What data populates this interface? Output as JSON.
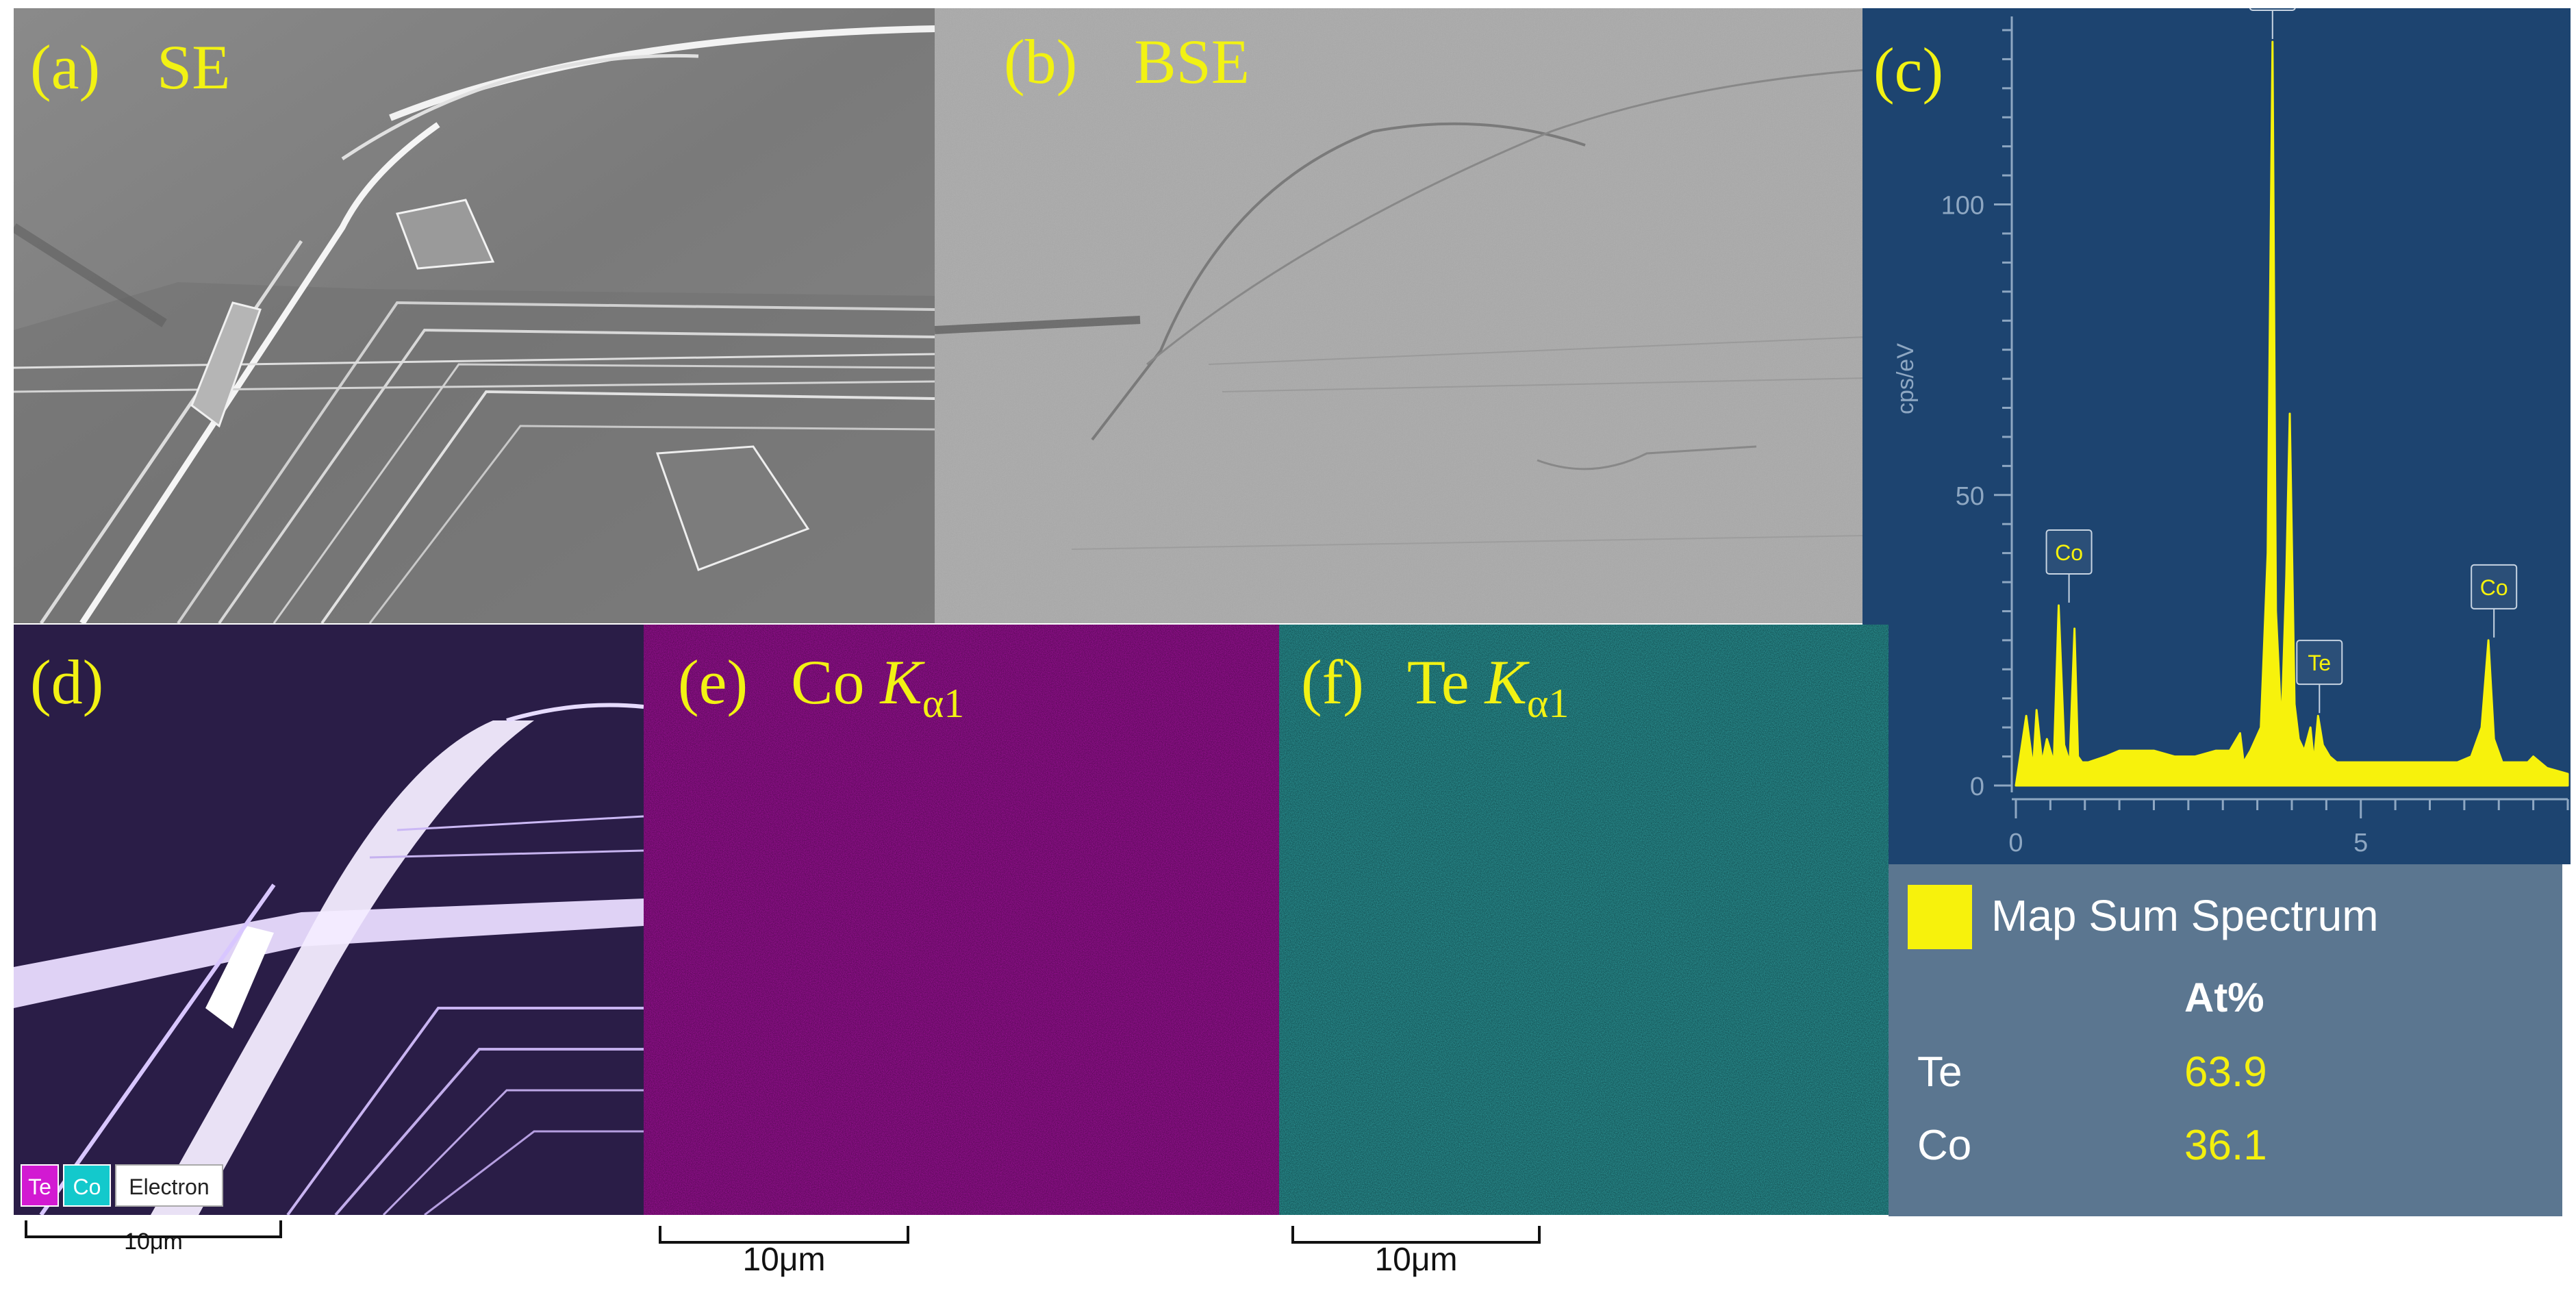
{
  "panels": {
    "a": {
      "label": "(a)",
      "title": "SE"
    },
    "b": {
      "label": "(b)",
      "title": "BSE"
    },
    "c": {
      "label": "(c)"
    },
    "d": {
      "label": "(d)"
    },
    "e": {
      "label": "(e)",
      "title_el": "Co",
      "title_k": "K",
      "title_sub": "α1"
    },
    "f": {
      "label": "(f)",
      "title_el": "Te",
      "title_k": "K",
      "title_sub": "α1"
    }
  },
  "map_legend": {
    "te": "Te",
    "co": "Co",
    "electron": "Electron"
  },
  "scale_bars": {
    "d": "10μm",
    "e": "10μm",
    "f": "10μm"
  },
  "colors": {
    "label": "#f2f213",
    "spectrum": "#f7f20c",
    "spectrum_bg": "#1d4470",
    "co_map": "#a4129f",
    "te_map": "#1f7a77"
  },
  "chart_data": {
    "type": "line",
    "xlabel": "",
    "ylabel": "cps/eV",
    "xlim": [
      0,
      8
    ],
    "ylim": [
      0,
      130
    ],
    "x_ticks": [
      0,
      5
    ],
    "y_ticks": [
      0,
      50,
      100
    ],
    "series": [
      {
        "name": "",
        "x": [
          0.0,
          0.15,
          0.25,
          0.3,
          0.38,
          0.45,
          0.55,
          0.62,
          0.7,
          0.78,
          0.85,
          0.9,
          0.96,
          1.05,
          1.3,
          1.5,
          1.8,
          2.0,
          2.3,
          2.6,
          2.9,
          3.1,
          3.25,
          3.3,
          3.4,
          3.55,
          3.65,
          3.72,
          3.77,
          3.85,
          3.92,
          3.97,
          4.04,
          4.1,
          4.18,
          4.27,
          4.32,
          4.38,
          4.45,
          4.55,
          4.65,
          4.75,
          5.0,
          5.5,
          6.0,
          6.4,
          6.6,
          6.75,
          6.85,
          6.93,
          7.05,
          7.3,
          7.42,
          7.5,
          7.7,
          8.0
        ],
        "y": [
          0,
          12,
          3,
          13,
          4,
          8,
          4,
          31,
          7,
          4,
          27,
          5,
          4,
          4,
          5,
          6,
          6,
          6,
          5,
          5,
          6,
          6,
          9,
          4,
          6,
          10,
          40,
          128,
          30,
          10,
          36,
          64,
          14,
          8,
          6,
          10,
          4,
          12,
          7,
          5,
          4,
          4,
          4,
          4,
          4,
          4,
          5,
          10,
          25,
          8,
          4,
          4,
          4,
          5,
          3,
          2
        ]
      }
    ],
    "peak_labels": [
      {
        "x": 0.77,
        "y": 31,
        "text": "Co"
      },
      {
        "x": 3.72,
        "y": 128,
        "text": "Te"
      },
      {
        "x": 4.4,
        "y": 12,
        "text": "Te"
      },
      {
        "x": 6.93,
        "y": 25,
        "text": "Co"
      }
    ]
  },
  "eds_legend": {
    "title": "Map Sum Spectrum",
    "header": "At%",
    "rows": [
      {
        "element": "Te",
        "value": "63.9"
      },
      {
        "element": "Co",
        "value": "36.1"
      }
    ]
  }
}
